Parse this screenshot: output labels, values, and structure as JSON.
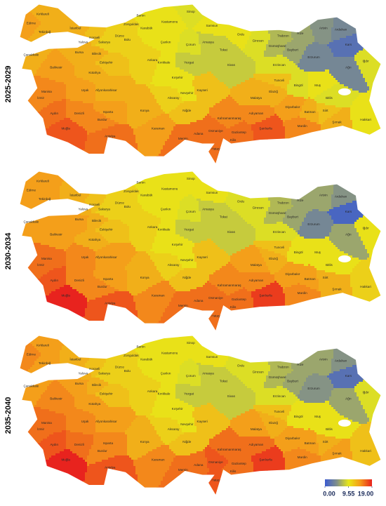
{
  "provinces": [
    "Kırklareli",
    "Edirne",
    "Tekirdağ",
    "İstanbul",
    "Kocaeli",
    "Sakarya",
    "Düzce",
    "Zonguldak",
    "Bartın",
    "Karabük",
    "Kastamonu",
    "Sinop",
    "Samsun",
    "Ordu",
    "Giresun",
    "Trabzon",
    "Rize",
    "Artvin",
    "Ardahan",
    "Kars",
    "Iğdır",
    "Ağrı",
    "Erzurum",
    "Bayburt",
    "Gümüşhane",
    "Erzincan",
    "Tunceli",
    "Bingöl",
    "Muş",
    "Bitlis",
    "Hakkari",
    "Şırnak",
    "Siirt",
    "Batman",
    "Mardin",
    "Diyarbakır",
    "Elazığ",
    "Malatya",
    "Adıyaman",
    "Şanlıurfa",
    "Gaziantep",
    "Kilis",
    "Osmaniye",
    "Hatay",
    "Adana",
    "Kahramanmaraş",
    "Mersin",
    "Karaman",
    "Antalya",
    "Muğla",
    "Aydın",
    "Denizli",
    "Burdur",
    "Isparta",
    "Konya",
    "Niğde",
    "Aksaray",
    "Nevşehir",
    "Kayseri",
    "Kırşehir",
    "Kırıkkale",
    "Ankara",
    "Çankırı",
    "Çorum",
    "Amasya",
    "Tokat",
    "Yozgat",
    "Sivas",
    "Bolu",
    "Bilecik",
    "Bursa",
    "Yalova",
    "Balıkesir",
    "Çanakkale",
    "İzmir",
    "Manisa",
    "Kütahya",
    "Uşak",
    "Afyonkarahisar",
    "Eskişehir"
  ],
  "panels": [
    {
      "label": "2025-2029",
      "values": [
        13,
        14,
        13,
        13,
        12,
        11,
        11,
        11,
        10,
        10,
        10,
        9,
        10,
        10,
        9,
        7,
        6,
        5,
        4,
        2,
        9,
        4,
        4,
        6,
        7,
        9,
        12,
        9,
        10,
        9,
        10,
        13,
        12,
        13,
        15,
        14,
        13,
        13,
        15,
        17,
        16,
        16,
        16,
        16,
        16,
        15,
        16,
        14,
        16,
        17,
        16,
        15,
        15,
        14,
        13,
        12,
        11,
        10,
        12,
        10,
        10,
        11,
        10,
        9,
        8,
        8,
        8,
        8,
        11,
        13,
        13,
        13,
        14,
        13,
        15,
        15,
        13,
        14,
        13,
        12
      ]
    },
    {
      "label": "2030-2034",
      "values": [
        14,
        14,
        14,
        13,
        12,
        11,
        11,
        11,
        10,
        10,
        10,
        10,
        10,
        9,
        9,
        7,
        6,
        6,
        5,
        1,
        10,
        6,
        4,
        6,
        7,
        9,
        12,
        10,
        10,
        10,
        11,
        13,
        13,
        14,
        15,
        14,
        13,
        14,
        15,
        18,
        16,
        16,
        16,
        16,
        16,
        15,
        16,
        15,
        17,
        19,
        17,
        15,
        15,
        14,
        13,
        12,
        11,
        10,
        12,
        10,
        10,
        11,
        10,
        9,
        8,
        8,
        8,
        8,
        11,
        13,
        14,
        13,
        14,
        14,
        16,
        16,
        13,
        15,
        14,
        12
      ]
    },
    {
      "label": "2035-2040",
      "values": [
        14,
        15,
        14,
        13,
        12,
        11,
        11,
        11,
        10,
        10,
        10,
        10,
        10,
        9,
        9,
        7,
        6,
        6,
        5,
        2,
        9,
        6,
        5,
        6,
        7,
        9,
        12,
        10,
        10,
        10,
        12,
        14,
        13,
        14,
        15,
        14,
        13,
        14,
        16,
        18,
        16,
        16,
        17,
        17,
        16,
        16,
        16,
        15,
        17,
        19,
        17,
        16,
        15,
        15,
        13,
        12,
        11,
        10,
        12,
        10,
        10,
        11,
        10,
        9,
        8,
        8,
        8,
        8,
        11,
        13,
        14,
        13,
        15,
        14,
        16,
        16,
        14,
        15,
        14,
        12
      ]
    }
  ],
  "colorbar": {
    "ticks": [
      {
        "value": 0,
        "label": "0.00"
      },
      {
        "value": 9.55,
        "label": "9.55"
      },
      {
        "value": 19,
        "label": "19.00"
      }
    ]
  }
}
